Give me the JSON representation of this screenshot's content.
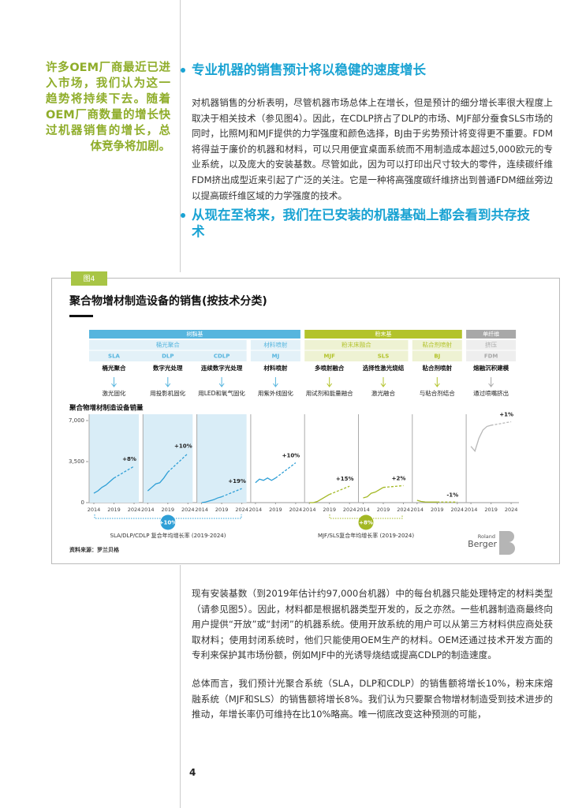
{
  "sidebar_quote": "许多OEM厂商最近已进入市场，我们认为这一趋势将持续下去。随着OEM厂商数量的增长快过机器销售的增长，总体竞争将加剧。",
  "sections": [
    {
      "heading": "专业机器的销售预计将以稳健的速度增长",
      "paragraph": "对机器销售的分析表明，尽管机器市场总体上在增长，但是预计的细分增长率很大程度上取决于相关技术（参见图4）。因此，在CDLP挤占了DLP的市场、MJF部分蚕食SLS市场的同时，比照MJ和MJF提供的力学强度和颜色选择，BJ由于劣势预计将变得更不重要。FDM将得益于廉价的机器和材料，可以只用便宜桌面系统而不用制造成本超过5,000欧元的专业系统，以及庞大的安装基数。尽管如此，因为可以打印出尺寸较大的零件，连续碳纤维FDM挤出成型近来引起了广泛的关注。它是一种将高强度碳纤维挤出到普通FDM细丝旁边以提高碳纤维区域的力学强度的技术。"
    },
    {
      "heading": "从现在至将来，我们在已安装的机器基础上都会看到共存技术"
    }
  ],
  "figure": {
    "tag": "图4",
    "source": "资料来源：罗兰贝格",
    "logo": {
      "line1": "Roland",
      "line2": "Berger"
    }
  },
  "chart_data": {
    "type": "line",
    "title": "聚合物增材制造设备的销售(按技术分类)",
    "y_label": "聚合物增材制造设备销量",
    "ylim": [
      0,
      7000
    ],
    "yticks": [
      0,
      {
        "value": 3500,
        "label": "3,500"
      },
      {
        "value": 7000,
        "label": "7,000"
      }
    ],
    "xlim": [
      2014,
      2024
    ],
    "xticks": [
      2014,
      2019,
      2024
    ],
    "x": [
      2014,
      2015,
      2016,
      2017,
      2018,
      2019
    ],
    "forecast_x": [
      2019,
      2024
    ],
    "groups": [
      {
        "name": "树脂基",
        "color": "#56b5de",
        "tint": "#e3f1f8",
        "subgroups": [
          {
            "name": "桶光聚合",
            "background": "#d9edf7",
            "series": [
              {
                "name": "SLA",
                "process": "桶光聚合",
                "method": "激光固化",
                "color": "#2f9fd6",
                "values": [
                  800,
                  1000,
                  1300,
                  1500,
                  1800,
                  2100
                ],
                "forecast": [
                  2100,
                  3100
                ],
                "growth": 8,
                "growth_label": "+8%"
              },
              {
                "name": "DLP",
                "process": "数字光处理",
                "method": "用投影机固化",
                "color": "#2f9fd6",
                "values": [
                  1000,
                  1300,
                  1600,
                  1700,
                  2100,
                  2600
                ],
                "forecast": [
                  2600,
                  4200
                ],
                "growth": 10,
                "growth_label": "+10%"
              },
              {
                "name": "CDLP",
                "process": "连续数字光处理",
                "method": "用LED和氧气固化",
                "color": "#2f9fd6",
                "values": [
                  0,
                  50,
                  150,
                  250,
                  400,
                  500
                ],
                "forecast": [
                  500,
                  1200
                ],
                "growth": 19,
                "growth_label": "+19%"
              }
            ]
          },
          {
            "name": "材料喷射",
            "series": [
              {
                "name": "MJ",
                "process": "材料喷射",
                "method": "用紫外线固化",
                "color": "#2f9fd6",
                "values": [
                  1700,
                  2000,
                  1900,
                  2100,
                  1900,
                  2100
                ],
                "forecast": [
                  2100,
                  3400
                ],
                "growth": 10,
                "growth_label": "+10%"
              }
            ]
          }
        ]
      },
      {
        "name": "粉末基",
        "color": "#b3c32c",
        "tint": "#eef2d3",
        "subgroups": [
          {
            "name": "粉末床融合",
            "series": [
              {
                "name": "MJF",
                "process": "多喷射融合",
                "method": "用试剂和能量融合",
                "color": "#a3b824",
                "values": [
                  0,
                  0,
                  100,
                  300,
                  500,
                  700
                ],
                "forecast": [
                  700,
                  1400
                ],
                "growth": 15,
                "growth_label": "+15%"
              },
              {
                "name": "SLS",
                "process": "选择性激光烧结",
                "method": "激光融合",
                "color": "#a3b824",
                "values": [
                  400,
                  500,
                  800,
                  900,
                  1100,
                  1300
                ],
                "forecast": [
                  1300,
                  1450
                ],
                "growth": 2,
                "growth_label": "+2%"
              }
            ]
          },
          {
            "name": "粘合剂喷射",
            "series": [
              {
                "name": "BJ",
                "process": "粘合剂喷射",
                "method": "与粘合剂结合",
                "color": "#a3b824",
                "values": [
                  200,
                  100,
                  60,
                  50,
                  50,
                  50
                ],
                "forecast": [
                  50,
                  45
                ],
                "growth": -1,
                "growth_label": "-1%"
              }
            ]
          }
        ]
      },
      {
        "name": "单纤维",
        "color": "#a8a8a8",
        "tint": "#eeeeee",
        "subgroups": [
          {
            "name": "挤压",
            "series": [
              {
                "name": "FDM",
                "process": "熔融沉积建模",
                "method": "通过喷嘴挤出",
                "color": "#b8b8b8",
                "values": [
                  4800,
                  4400,
                  5500,
                  6200,
                  6500,
                  6600
                ],
                "forecast": [
                  6600,
                  6900
                ],
                "growth": 1,
                "growth_label": "+1%"
              }
            ]
          }
        ]
      }
    ],
    "cagr_summary": [
      {
        "value": 10,
        "label": "+10%",
        "color": "#2f9fd6",
        "caption": "SLA/DLP/CDLP 复合年均增长率 (2019-2024)"
      },
      {
        "value": 8,
        "label": "+8%",
        "color": "#a3b824",
        "caption": "MJF/SLS复合年均增长率 (2019-2024)"
      }
    ]
  },
  "body": [
    "现有安装基数（到2019年估计约97,000台机器）中的每台机器只能处理特定的材料类型（请参见图5）。因此，材料都是根据机器类型开发的，反之亦然。一些机器制造商最终向用户提供“开放”或“封闭”的机器系统。使用开放系统的用户可以从第三方材料供应商处获取材料；使用封闭系统时，他们只能使用OEM生产的材料。OEM还通过技术开发方面的专利来保护其市场份额，例如MJF中的光诱导烧结或提高CDLP的制造速度。",
    "总体而言，我们预计光聚合系统（SLA，DLP和CDLP）的销售额将增长10%，粉末床熔融系统（MJF和SLS）的销售额将增长8%。我们认为只要聚合物增材制造受到技术进步的推动，年增长率仍可维持在比10%略高。唯一彻底改变这种预测的可能，"
  ],
  "page_number": 4
}
